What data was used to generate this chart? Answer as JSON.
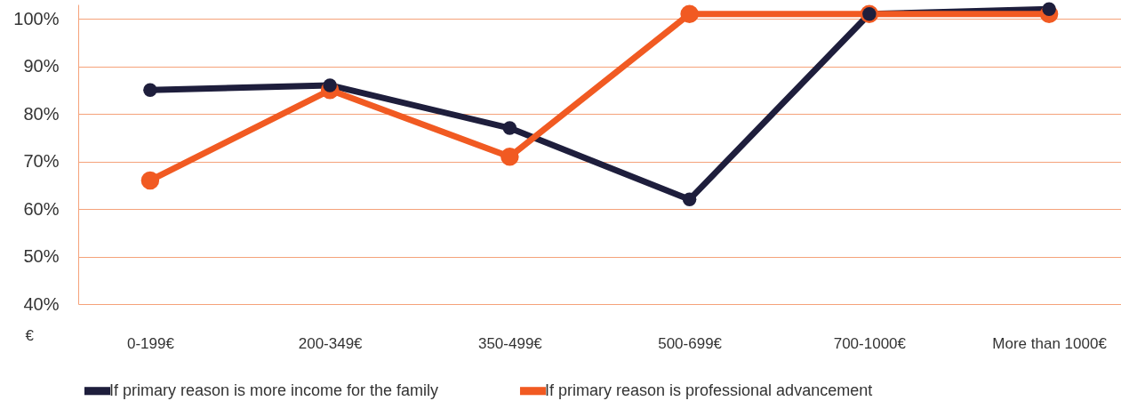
{
  "chart_data": {
    "type": "line",
    "xlabel": "€",
    "categories": [
      "0-199€",
      "200-349€",
      "350-499€",
      "500-699€",
      "700-1000€",
      "More than 1000€"
    ],
    "series": [
      {
        "name": "If primary reason is more income for the family",
        "color": "#1e1e3c",
        "values": [
          85,
          86,
          77,
          62,
          101,
          102
        ]
      },
      {
        "name": "If primary reason is professional advancement",
        "color": "#f15a22",
        "values": [
          66,
          85,
          71,
          101,
          101,
          101
        ]
      }
    ],
    "ylim": [
      40,
      103
    ],
    "yticks": [
      {
        "value": 40,
        "label": "40%"
      },
      {
        "value": 50,
        "label": "50%"
      },
      {
        "value": 60,
        "label": "60%"
      },
      {
        "value": 70,
        "label": "70%"
      },
      {
        "value": 80,
        "label": "80%"
      },
      {
        "value": 90,
        "label": "90%"
      },
      {
        "value": 100,
        "label": "100%"
      }
    ],
    "grid": "y",
    "legend": "bottom",
    "marker": "circle",
    "line_style": "solid"
  }
}
